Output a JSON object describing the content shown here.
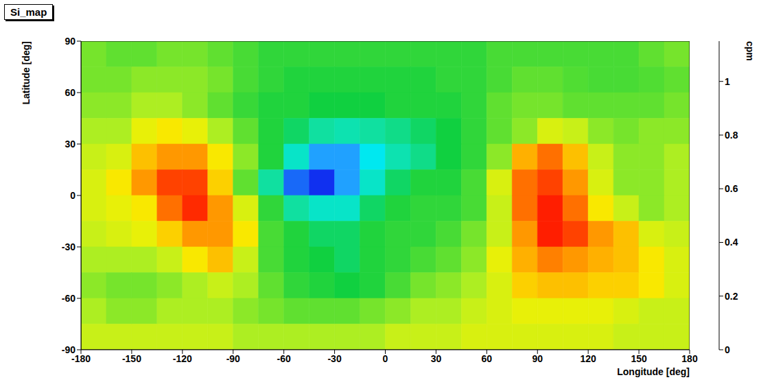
{
  "chart_data": {
    "type": "heatmap",
    "title": "Si_map",
    "x_label": "Longitude [deg]",
    "y_label": "Latitude [deg]",
    "xlim": [
      -180,
      180
    ],
    "ylim": [
      -90,
      90
    ],
    "xticks": [
      -180,
      -150,
      -120,
      -90,
      -60,
      -30,
      0,
      30,
      60,
      90,
      120,
      150,
      180
    ],
    "yticks": [
      -90,
      -60,
      -30,
      0,
      30,
      60,
      90
    ],
    "grid": false,
    "x_bins": [
      -180,
      -165,
      -150,
      -135,
      -120,
      -105,
      -90,
      -75,
      -60,
      -45,
      -30,
      -15,
      0,
      15,
      30,
      45,
      60,
      75,
      90,
      105,
      120,
      135,
      150,
      165,
      180
    ],
    "y_bins": [
      90,
      75,
      60,
      45,
      30,
      15,
      0,
      -15,
      -30,
      -45,
      -60,
      -75,
      -90
    ],
    "cells": [
      [
        0.7,
        0.68,
        0.68,
        0.7,
        0.7,
        0.68,
        0.65,
        0.62,
        0.62,
        0.62,
        0.62,
        0.62,
        0.62,
        0.62,
        0.62,
        0.62,
        0.65,
        0.65,
        0.65,
        0.65,
        0.65,
        0.65,
        0.68,
        0.7
      ],
      [
        0.7,
        0.7,
        0.72,
        0.72,
        0.72,
        0.7,
        0.65,
        0.62,
        0.6,
        0.6,
        0.6,
        0.6,
        0.6,
        0.6,
        0.62,
        0.62,
        0.65,
        0.68,
        0.68,
        0.66,
        0.65,
        0.65,
        0.66,
        0.68
      ],
      [
        0.72,
        0.72,
        0.75,
        0.75,
        0.72,
        0.68,
        0.63,
        0.6,
        0.6,
        0.58,
        0.58,
        0.58,
        0.6,
        0.6,
        0.6,
        0.62,
        0.68,
        0.7,
        0.7,
        0.68,
        0.68,
        0.68,
        0.68,
        0.7
      ],
      [
        0.75,
        0.75,
        0.82,
        0.85,
        0.82,
        0.75,
        0.68,
        0.6,
        0.55,
        0.5,
        0.48,
        0.5,
        0.52,
        0.55,
        0.58,
        0.62,
        0.68,
        0.72,
        0.8,
        0.78,
        0.72,
        0.7,
        0.72,
        0.72
      ],
      [
        0.78,
        0.8,
        0.9,
        0.95,
        0.95,
        0.85,
        0.72,
        0.6,
        0.45,
        0.3,
        0.3,
        0.4,
        0.48,
        0.52,
        0.58,
        0.62,
        0.72,
        0.92,
        1.0,
        0.9,
        0.78,
        0.72,
        0.72,
        0.75
      ],
      [
        0.8,
        0.85,
        0.95,
        1.05,
        1.05,
        0.88,
        0.68,
        0.5,
        0.25,
        0.2,
        0.3,
        0.45,
        0.55,
        0.6,
        0.6,
        0.65,
        0.8,
        1.0,
        1.05,
        0.95,
        0.8,
        0.72,
        0.72,
        0.75
      ],
      [
        0.8,
        0.82,
        0.85,
        1.0,
        1.08,
        0.95,
        0.8,
        0.62,
        0.5,
        0.45,
        0.45,
        0.55,
        0.6,
        0.62,
        0.62,
        0.65,
        0.78,
        1.0,
        1.1,
        1.0,
        0.85,
        0.78,
        0.72,
        0.75
      ],
      [
        0.78,
        0.8,
        0.82,
        0.88,
        0.95,
        0.95,
        0.85,
        0.65,
        0.6,
        0.55,
        0.55,
        0.6,
        0.62,
        0.62,
        0.65,
        0.7,
        0.78,
        0.95,
        1.1,
        1.05,
        0.95,
        0.9,
        0.8,
        0.78
      ],
      [
        0.75,
        0.75,
        0.75,
        0.78,
        0.85,
        0.9,
        0.78,
        0.65,
        0.6,
        0.58,
        0.55,
        0.6,
        0.62,
        0.65,
        0.68,
        0.72,
        0.82,
        0.92,
        0.98,
        0.95,
        0.92,
        0.9,
        0.85,
        0.8
      ],
      [
        0.72,
        0.7,
        0.7,
        0.72,
        0.75,
        0.78,
        0.75,
        0.68,
        0.62,
        0.6,
        0.58,
        0.6,
        0.65,
        0.7,
        0.72,
        0.75,
        0.8,
        0.88,
        0.9,
        0.9,
        0.88,
        0.88,
        0.85,
        0.8
      ],
      [
        0.75,
        0.72,
        0.72,
        0.75,
        0.75,
        0.75,
        0.72,
        0.7,
        0.68,
        0.68,
        0.68,
        0.7,
        0.72,
        0.75,
        0.75,
        0.78,
        0.8,
        0.82,
        0.82,
        0.82,
        0.82,
        0.8,
        0.78,
        0.78
      ],
      [
        0.78,
        0.78,
        0.78,
        0.78,
        0.78,
        0.78,
        0.75,
        0.75,
        0.75,
        0.75,
        0.75,
        0.75,
        0.78,
        0.78,
        0.78,
        0.8,
        0.8,
        0.8,
        0.8,
        0.8,
        0.8,
        0.78,
        0.78,
        0.78
      ]
    ],
    "colorbar": {
      "label": "cpm",
      "range": [
        0,
        1.15
      ],
      "ticks": [
        0,
        0.2,
        0.4,
        0.6,
        0.8,
        1
      ]
    }
  }
}
